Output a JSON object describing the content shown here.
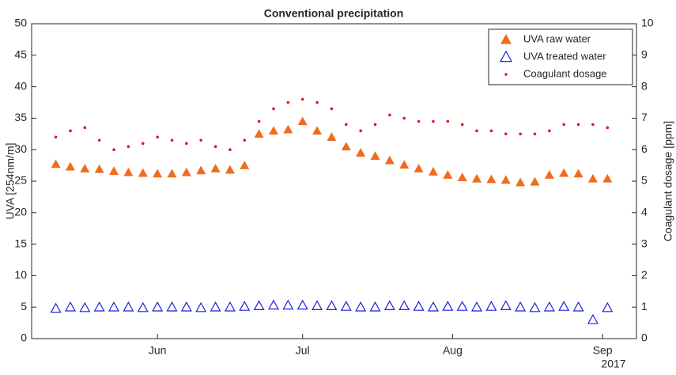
{
  "chart_data": {
    "type": "scatter",
    "title": "Conventional precipitation",
    "ylabel": "UVA [254nm/m]",
    "y2label": "Coagulant dosage [ppm]",
    "xlabel": "2017",
    "x": [
      131,
      134,
      137,
      140,
      143,
      146,
      149,
      152,
      155,
      158,
      161,
      164,
      167,
      170,
      173,
      176,
      179,
      182,
      185,
      188,
      191,
      194,
      197,
      200,
      203,
      206,
      209,
      212,
      215,
      218,
      221,
      224,
      227,
      230,
      233,
      236,
      239,
      242,
      245
    ],
    "xlim": [
      126,
      251
    ],
    "xticks": [
      {
        "value": 152,
        "label": "Jun"
      },
      {
        "value": 182,
        "label": "Jul"
      },
      {
        "value": 213,
        "label": "Aug"
      },
      {
        "value": 244,
        "label": "Sep"
      }
    ],
    "ylim": [
      0,
      50
    ],
    "yticks": [
      0,
      5,
      10,
      15,
      20,
      25,
      30,
      35,
      40,
      45,
      50
    ],
    "y2lim": [
      0,
      10
    ],
    "y2ticks": [
      0,
      1,
      2,
      3,
      4,
      5,
      6,
      7,
      8,
      9,
      10
    ],
    "legend": "upper right",
    "series": [
      {
        "name": "UVA raw water",
        "color": "#f26b1d",
        "marker": "filled-triangle",
        "values": [
          27.7,
          27.3,
          27.0,
          26.9,
          26.6,
          26.4,
          26.3,
          26.2,
          26.2,
          26.4,
          26.7,
          27.0,
          26.8,
          27.5,
          32.5,
          33.0,
          33.2,
          34.5,
          33.0,
          32.0,
          30.5,
          29.5,
          29.0,
          28.3,
          27.6,
          27.0,
          26.5,
          26.0,
          25.6,
          25.4,
          25.3,
          25.2,
          24.8,
          24.9,
          26.0,
          26.3,
          26.2,
          25.4,
          25.4
        ]
      },
      {
        "name": "UVA treated water",
        "color": "#1f1fe0",
        "marker": "open-triangle",
        "values": [
          4.8,
          5.0,
          4.9,
          5.0,
          5.0,
          5.0,
          4.9,
          5.0,
          5.0,
          5.0,
          4.9,
          5.0,
          5.0,
          5.1,
          5.2,
          5.3,
          5.3,
          5.3,
          5.2,
          5.2,
          5.1,
          5.0,
          5.0,
          5.2,
          5.2,
          5.1,
          5.0,
          5.1,
          5.1,
          5.0,
          5.1,
          5.2,
          5.0,
          4.9,
          5.0,
          5.1,
          5.0,
          3.0,
          4.9
        ]
      },
      {
        "name": "Coagulant dosage",
        "color": "#e8141a",
        "marker": "dot",
        "axis": "y2",
        "values": [
          6.4,
          6.6,
          6.7,
          6.3,
          6.0,
          6.1,
          6.2,
          6.4,
          6.3,
          6.2,
          6.3,
          6.1,
          6.0,
          6.3,
          6.9,
          7.3,
          7.5,
          7.6,
          7.5,
          7.3,
          6.8,
          6.6,
          6.8,
          7.1,
          7.0,
          6.9,
          6.9,
          6.9,
          6.8,
          6.6,
          6.6,
          6.5,
          6.5,
          6.5,
          6.6,
          6.8,
          6.8,
          6.8,
          6.7
        ]
      }
    ]
  }
}
